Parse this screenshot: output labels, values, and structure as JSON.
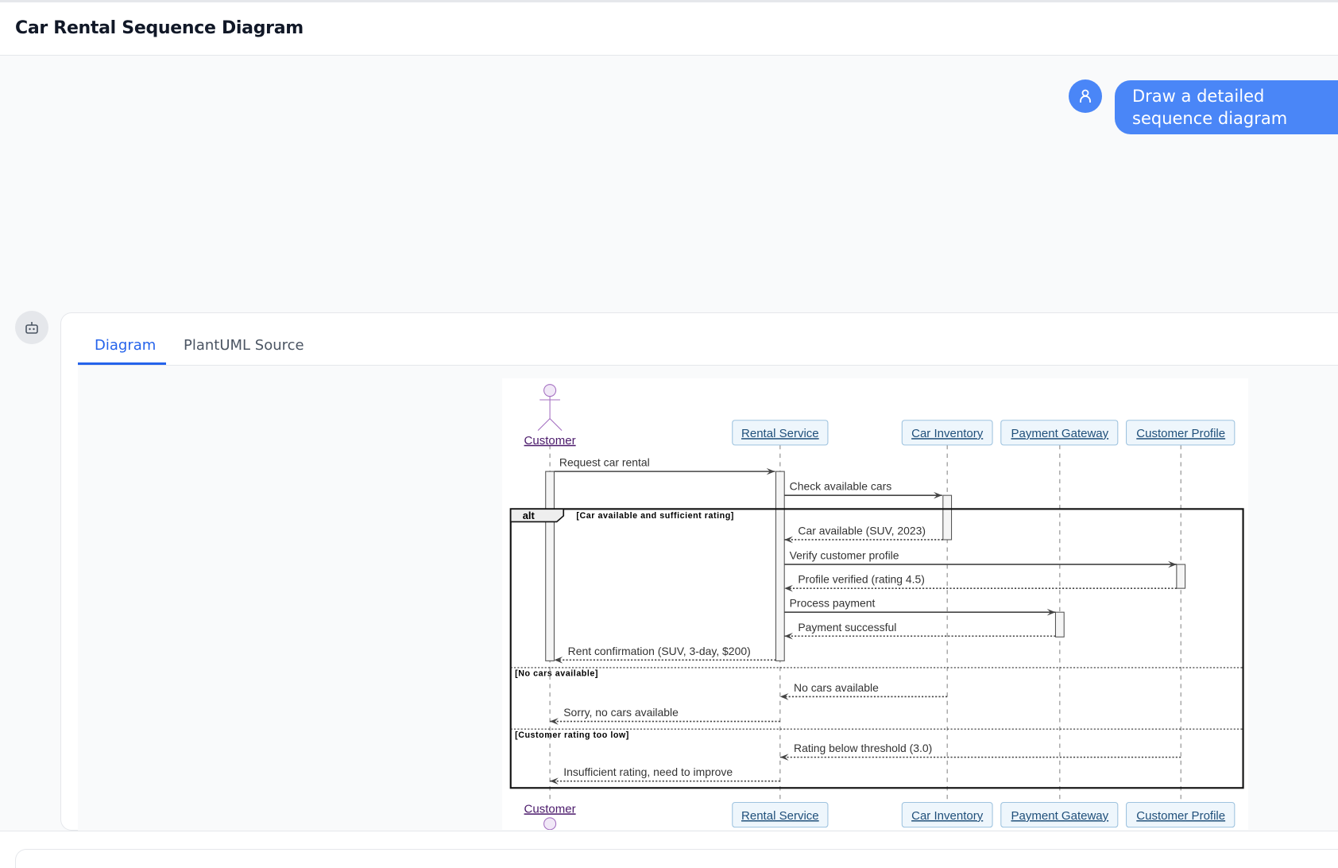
{
  "header": {
    "title": "Car Rental Sequence Diagram"
  },
  "chat": {
    "user_message": "Draw a detailed sequence diagram",
    "user_icon": "user-icon",
    "bot_icon": "robot-icon"
  },
  "tabs": [
    {
      "label": "Diagram",
      "active": true
    },
    {
      "label": "PlantUML Source",
      "active": false
    }
  ],
  "colors": {
    "accent": "#2563eb",
    "bubble": "#4a86f7",
    "participant_fill": "#eef6fc",
    "participant_border": "#9ec3df",
    "actor": "#a46fc1"
  },
  "diagram": {
    "actor": "Customer",
    "participants": [
      "Rental Service",
      "Car Inventory",
      "Payment Gateway",
      "Customer Profile"
    ],
    "alt": {
      "label": "alt",
      "guards": [
        "[Car available and sufficient rating]",
        "[No cars available]",
        "[Customer rating too low]"
      ]
    },
    "messages": [
      {
        "from": "Customer",
        "to": "Rental Service",
        "text": "Request car rental",
        "style": "solid"
      },
      {
        "from": "Rental Service",
        "to": "Car Inventory",
        "text": "Check available cars",
        "style": "solid"
      },
      {
        "from": "Car Inventory",
        "to": "Rental Service",
        "text": "Car available (SUV, 2023)",
        "style": "dashed"
      },
      {
        "from": "Rental Service",
        "to": "Customer Profile",
        "text": "Verify customer profile",
        "style": "solid"
      },
      {
        "from": "Customer Profile",
        "to": "Rental Service",
        "text": "Profile verified (rating 4.5)",
        "style": "dashed"
      },
      {
        "from": "Rental Service",
        "to": "Payment Gateway",
        "text": "Process payment",
        "style": "solid"
      },
      {
        "from": "Payment Gateway",
        "to": "Rental Service",
        "text": "Payment successful",
        "style": "dashed"
      },
      {
        "from": "Rental Service",
        "to": "Customer",
        "text": "Rent confirmation (SUV, 3-day, $200)",
        "style": "dashed"
      },
      {
        "from": "Car Inventory",
        "to": "Rental Service",
        "text": "No cars available",
        "style": "dashed"
      },
      {
        "from": "Rental Service",
        "to": "Customer",
        "text": "Sorry, no cars available",
        "style": "dashed"
      },
      {
        "from": "Customer Profile",
        "to": "Rental Service",
        "text": "Rating below threshold (3.0)",
        "style": "dashed"
      },
      {
        "from": "Rental Service",
        "to": "Customer",
        "text": "Insufficient rating, need to improve",
        "style": "dashed"
      }
    ]
  }
}
